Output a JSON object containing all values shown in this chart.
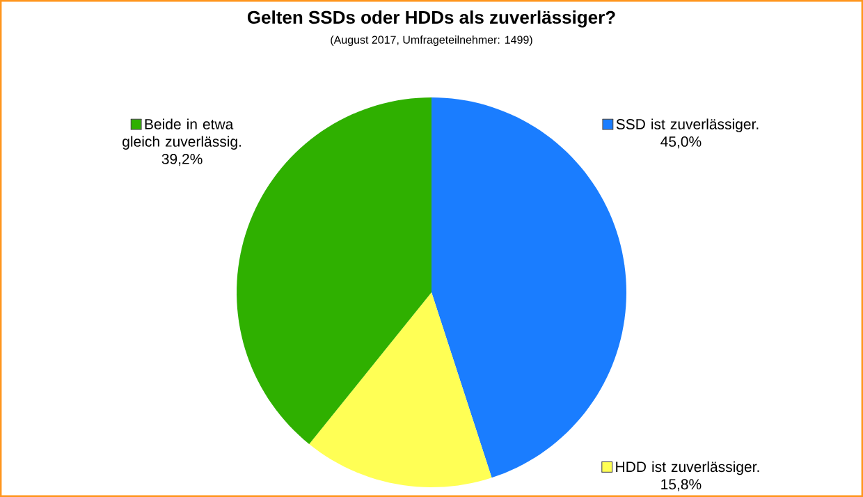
{
  "chart_data": {
    "type": "pie",
    "title": "Gelten SSDs oder HDDs als zuverlässiger?",
    "subtitle": "(August 2017, Umfrageteilnehmer: 1499)",
    "categories": [
      "SSD ist zuverlässiger.",
      "HDD ist zuverlässiger.",
      "Beide in etwa gleich zuverlässig."
    ],
    "values": [
      45.0,
      15.8,
      39.2
    ],
    "legend": "right",
    "value_labels": [
      "45,0%",
      "15,8%",
      "39,2%"
    ],
    "colors": [
      "#1a7dff",
      "#ffff55",
      "#2fb000"
    ]
  }
}
